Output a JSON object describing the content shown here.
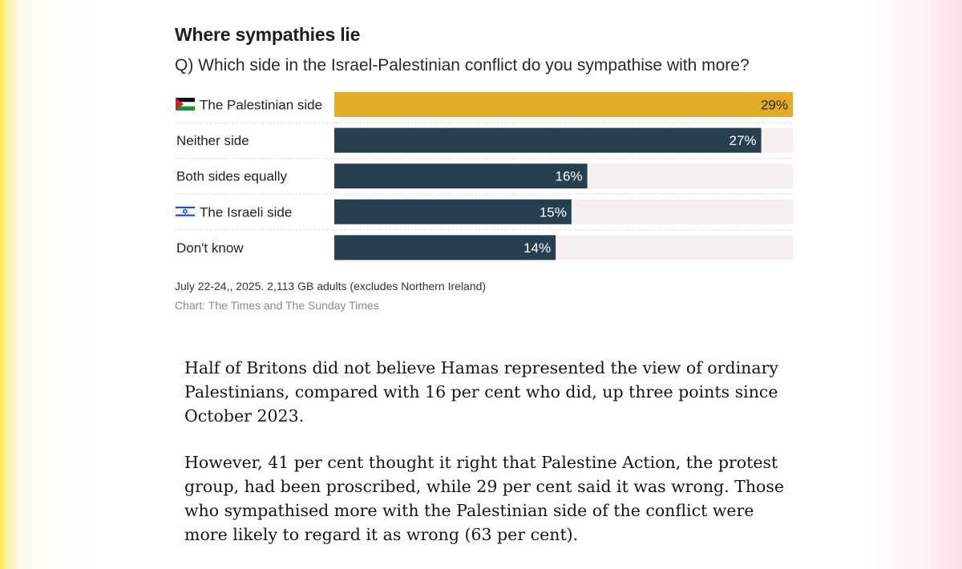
{
  "chart_data": {
    "type": "bar",
    "orientation": "horizontal",
    "title": "Where sympathies lie",
    "subtitle": "Q) Which side in the Israel-Palestinian conflict do you sympathise with more?",
    "categories": [
      "The Palestinian side",
      "Neither side",
      "Both sides equally",
      "The Israeli side",
      "Don't know"
    ],
    "values": [
      29,
      27,
      16,
      15,
      14
    ],
    "value_labels": [
      "29%",
      "27%",
      "16%",
      "15%",
      "14%"
    ],
    "category_flags": [
      "palestine-flag-icon",
      "",
      "",
      "israel-flag-icon",
      ""
    ],
    "highlight_index": 0,
    "xlim": [
      0,
      29
    ],
    "unit": "%",
    "colors": {
      "highlight": "#e3ab28",
      "bar": "#26404f",
      "track": "#f6eff1",
      "separator": "#c8c8c8"
    },
    "note": "July 22-24,, 2025. 2,113 GB adults (excludes Northern Ireland)",
    "source": "Chart: The Times and The Sunday Times"
  },
  "article": {
    "paragraphs": [
      "Half of Britons did not believe Hamas represented the view of ordinary Palestinians, compared with 16 per cent who did, up three points since October 2023.",
      "However, 41 per cent thought it right that Palestine Action, the protest group, had been proscribed, while 29 per cent said it was wrong. Those who sympathised more with the Palestinian side of the conflict were more likely to regard it as wrong (63 per cent)."
    ]
  }
}
